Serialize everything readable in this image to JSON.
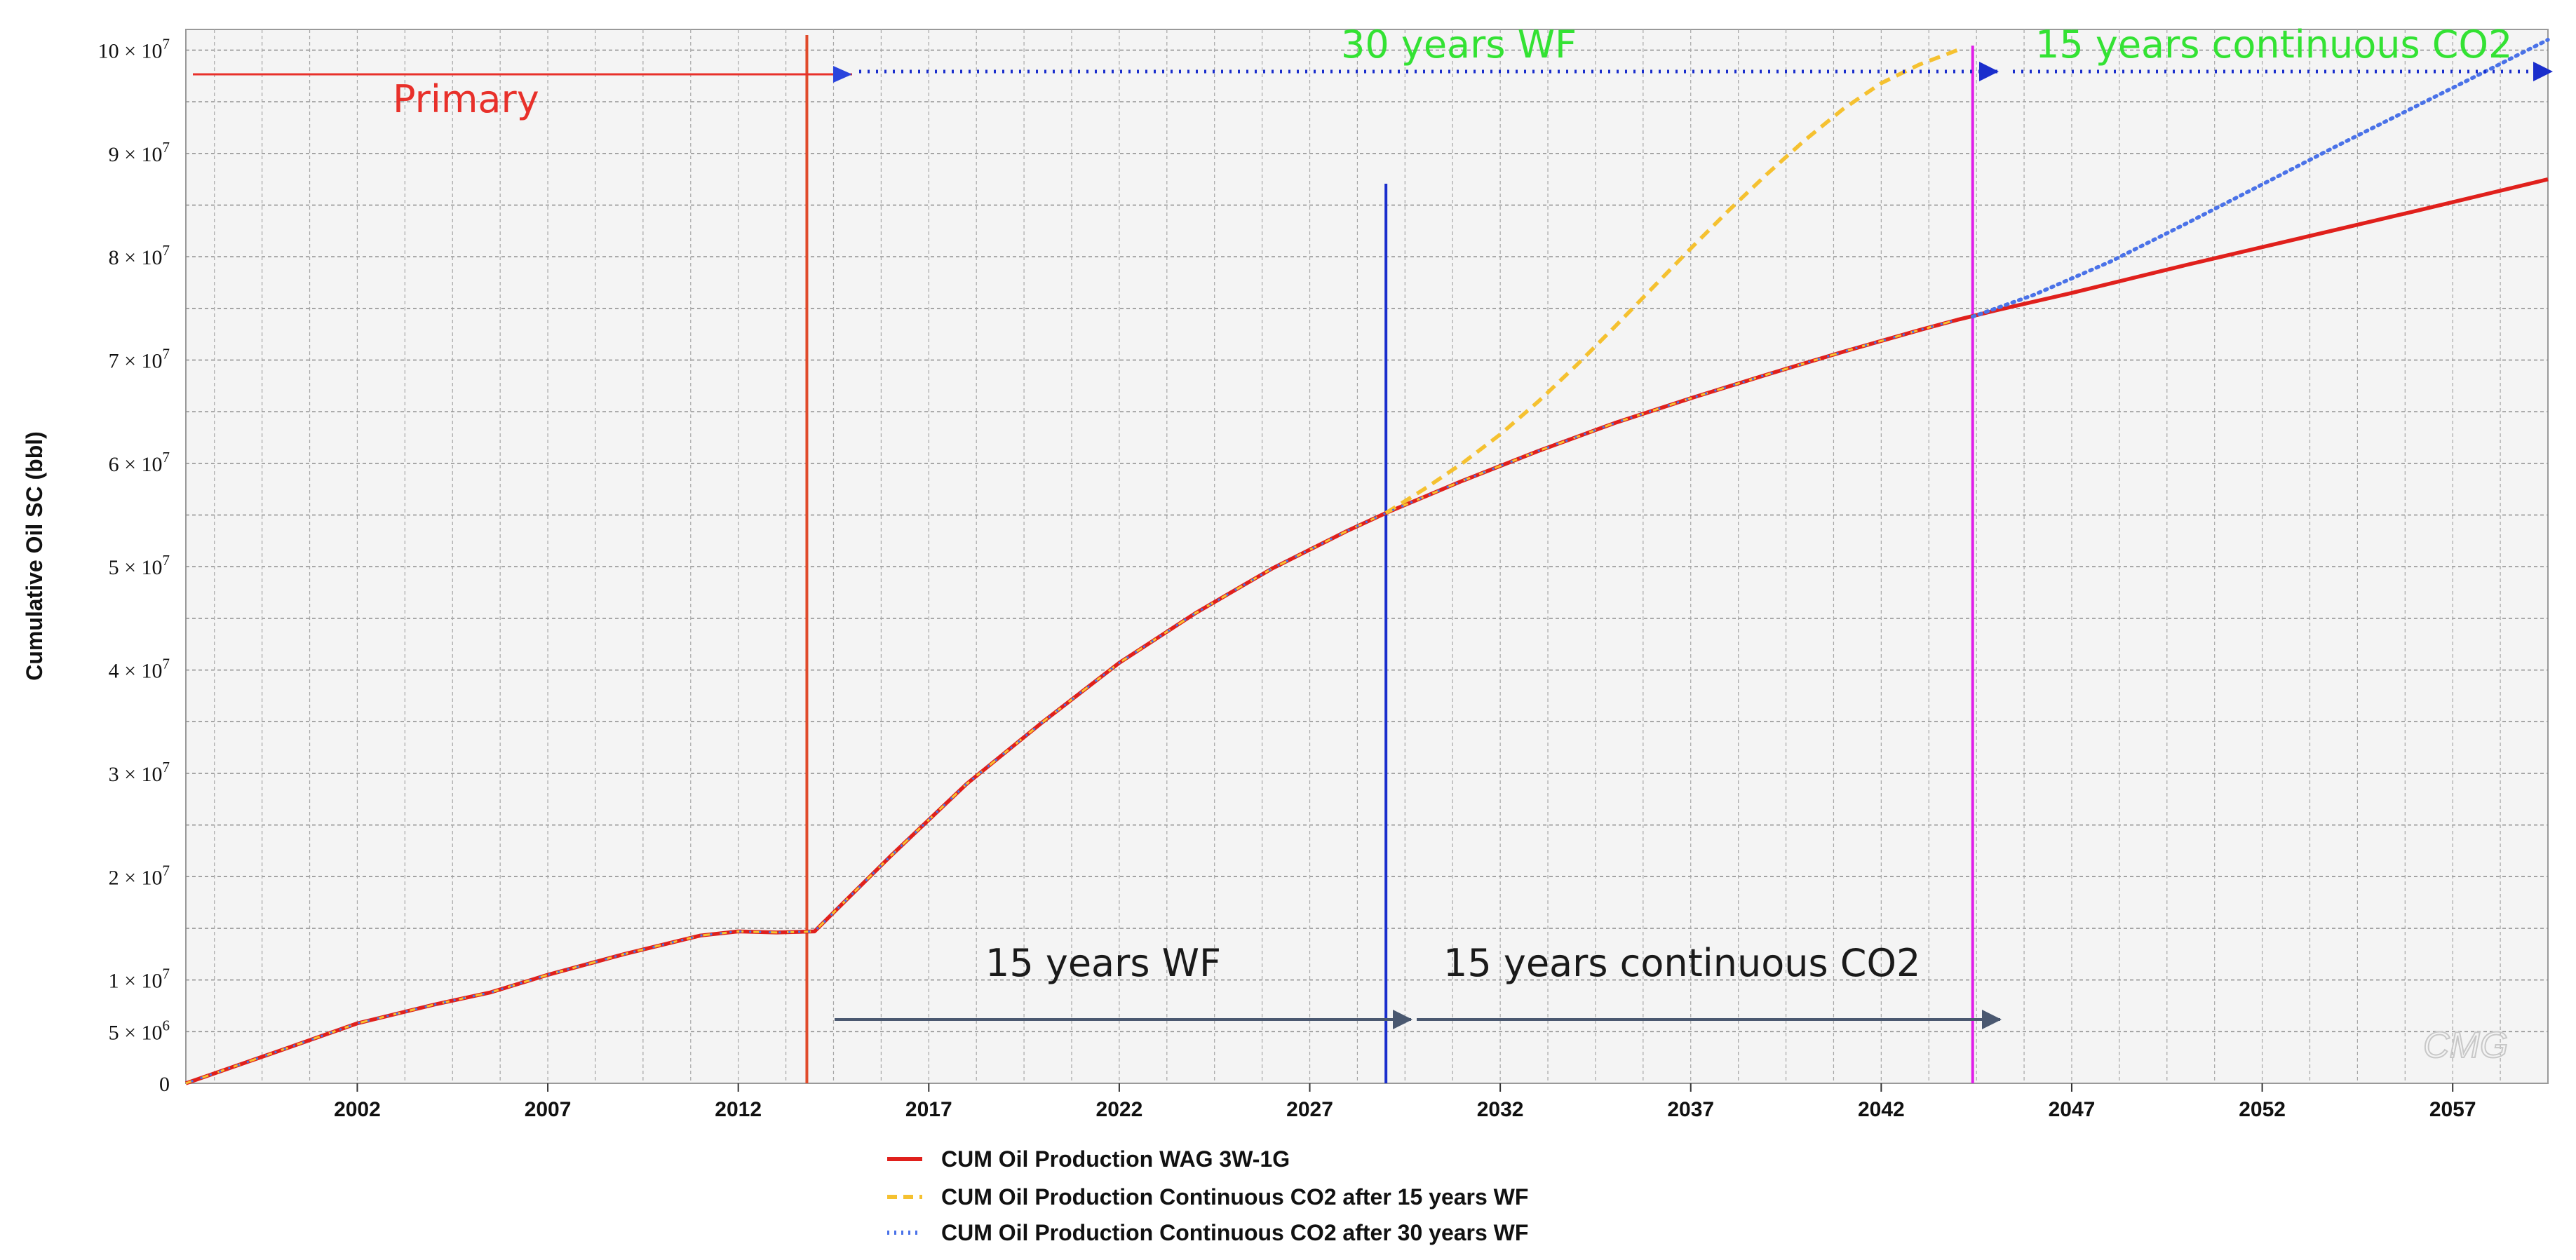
{
  "chart_data": {
    "type": "line",
    "title": "",
    "xlabel": "",
    "ylabel": "Cumulative Oil SC (bbl)",
    "xlim": [
      1997.5,
      2059.5
    ],
    "ylim": [
      0,
      102000000
    ],
    "x_ticks": [
      2002,
      2007,
      2012,
      2017,
      2022,
      2027,
      2032,
      2037,
      2042,
      2047,
      2052,
      2057
    ],
    "x_tick_labels": [
      "2002",
      "2007",
      "2012",
      "2017",
      "2022",
      "2027",
      "2032",
      "2037",
      "2042",
      "2047",
      "2052",
      "2057"
    ],
    "y_ticks": [
      {
        "value": 0,
        "mantissa": "0",
        "exponent": ""
      },
      {
        "value": 5000000,
        "mantissa": "5 × 10",
        "exponent": "6"
      },
      {
        "value": 10000000,
        "mantissa": "1 × 10",
        "exponent": "7"
      },
      {
        "value": 20000000,
        "mantissa": "2 × 10",
        "exponent": "7"
      },
      {
        "value": 30000000,
        "mantissa": "3 × 10",
        "exponent": "7"
      },
      {
        "value": 40000000,
        "mantissa": "4 × 10",
        "exponent": "7"
      },
      {
        "value": 50000000,
        "mantissa": "5 × 10",
        "exponent": "7"
      },
      {
        "value": 60000000,
        "mantissa": "6 × 10",
        "exponent": "7"
      },
      {
        "value": 70000000,
        "mantissa": "7 × 10",
        "exponent": "7"
      },
      {
        "value": 80000000,
        "mantissa": "8 × 10",
        "exponent": "7"
      },
      {
        "value": 90000000,
        "mantissa": "9 × 10",
        "exponent": "7"
      },
      {
        "value": 100000000,
        "mantissa": "10 × 10",
        "exponent": "7"
      }
    ],
    "series": [
      {
        "name": "CUM Oil Production WAG 3W-1G",
        "color": "#e0201c",
        "style": "solid",
        "x": [
          1997.5,
          2000,
          2002,
          2004,
          2005.5,
          2007,
          2009,
          2011,
          2012,
          2013,
          2014,
          2016,
          2018,
          2020,
          2022,
          2024,
          2026,
          2028,
          2029,
          2031,
          2033,
          2035,
          2037,
          2039,
          2041,
          2043,
          2044,
          2045,
          2047,
          2050,
          2053,
          2056,
          2059.5
        ],
        "y": [
          0,
          3200000,
          5800000,
          7600000,
          8800000,
          10500000,
          12500000,
          14300000,
          14700000,
          14600000,
          14700000,
          22000000,
          29000000,
          35000000,
          40700000,
          45500000,
          49800000,
          53500000,
          55200000,
          58300000,
          61200000,
          63900000,
          66300000,
          68600000,
          70800000,
          72900000,
          73900000,
          74800000,
          76500000,
          79200000,
          81800000,
          84400000,
          87500000
        ]
      },
      {
        "name": "CUM Oil Production Continuous CO2 after 15 years WF",
        "color": "#f5c130",
        "style": "dashed",
        "x": [
          2029,
          2030,
          2031,
          2032,
          2033,
          2034,
          2035,
          2036,
          2037,
          2038,
          2039,
          2040,
          2041,
          2042,
          2043,
          2044
        ],
        "y": [
          55200000,
          57500000,
          60000000,
          62800000,
          66000000,
          69500000,
          73200000,
          77000000,
          80800000,
          84500000,
          88000000,
          91300000,
          94300000,
          96800000,
          98600000,
          100000000
        ]
      },
      {
        "name": "CUM Oil Production Continuous CO2 after 30 years WF",
        "color": "#4a72e8",
        "style": "dotted",
        "x": [
          2044.4,
          2046,
          2048,
          2050,
          2052,
          2054,
          2056,
          2058,
          2059.5
        ],
        "y": [
          74200000,
          76300000,
          79500000,
          83200000,
          87000000,
          90800000,
          94500000,
          98200000,
          101000000
        ]
      }
    ],
    "markers": [
      {
        "x": 2013.8,
        "color": "#e04a2a",
        "label": ""
      },
      {
        "x": 2029,
        "color": "#1a2ecc",
        "label": ""
      },
      {
        "x": 2044.4,
        "color": "#e01ee8",
        "label": ""
      }
    ],
    "annotations": [
      {
        "text": "Primary",
        "color": "#e8302a"
      },
      {
        "text": "30 years WF",
        "color": "#33e233"
      },
      {
        "text": "15 years continuous CO2",
        "color": "#33e233"
      },
      {
        "text": "15 years WF",
        "color": "#1a1a1a"
      },
      {
        "text": "15 years continuous CO2",
        "color": "#1a1a1a"
      }
    ],
    "legend_position": "bottom-center",
    "watermark": "CMG"
  }
}
